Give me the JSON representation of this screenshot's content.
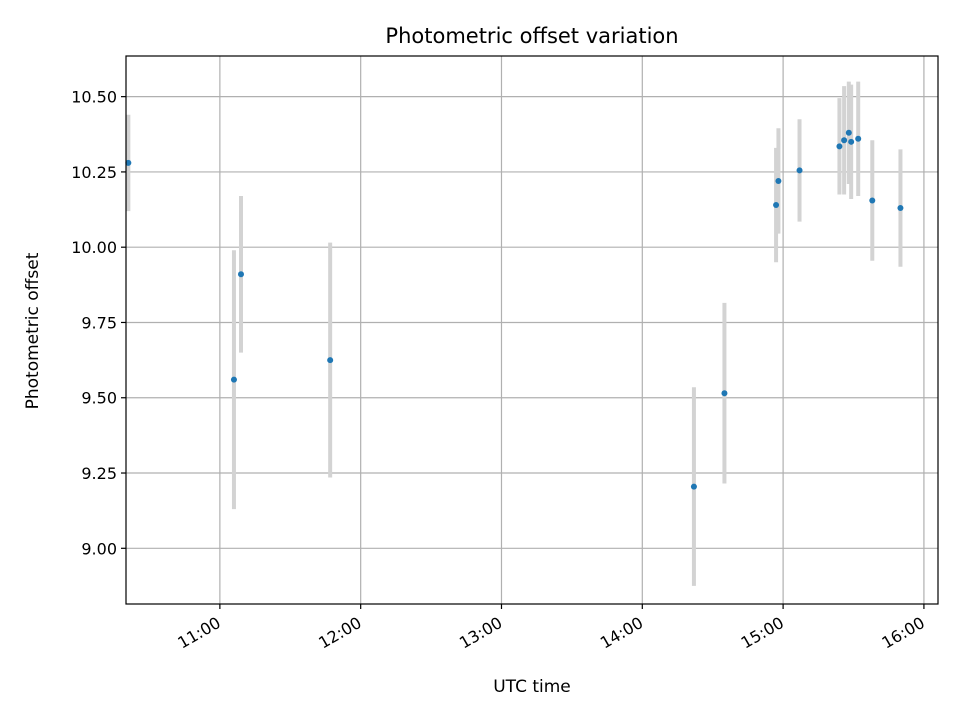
{
  "chart_data": {
    "type": "scatter",
    "title": "Photometric offset variation",
    "xlabel": "UTC time",
    "ylabel": "Photometric offset",
    "xlim": [
      "10:20",
      "16:06"
    ],
    "ylim": [
      8.815,
      10.635
    ],
    "x_ticks": [
      "11:00",
      "12:00",
      "13:00",
      "14:00",
      "15:00",
      "16:00"
    ],
    "y_ticks": [
      "9.00",
      "9.25",
      "9.50",
      "9.75",
      "10.00",
      "10.25",
      "10.50"
    ],
    "grid": true,
    "colors": {
      "point": "#1f77b4",
      "errorbar": "#d3d3d3",
      "grid": "#b0b0b0"
    },
    "points": [
      {
        "x": "10:21",
        "y": 10.28,
        "err": 0.16
      },
      {
        "x": "11:06",
        "y": 9.56,
        "err": 0.43
      },
      {
        "x": "11:09",
        "y": 9.91,
        "err": 0.26
      },
      {
        "x": "11:47",
        "y": 9.625,
        "err": 0.39
      },
      {
        "x": "14:22",
        "y": 9.205,
        "err": 0.33
      },
      {
        "x": "14:35",
        "y": 9.515,
        "err": 0.3
      },
      {
        "x": "14:57",
        "y": 10.14,
        "err": 0.19
      },
      {
        "x": "14:58",
        "y": 10.22,
        "err": 0.175
      },
      {
        "x": "15:07",
        "y": 10.255,
        "err": 0.17
      },
      {
        "x": "15:24",
        "y": 10.335,
        "err": 0.16
      },
      {
        "x": "15:26",
        "y": 10.355,
        "err": 0.18
      },
      {
        "x": "15:28",
        "y": 10.38,
        "err": 0.17
      },
      {
        "x": "15:29",
        "y": 10.35,
        "err": 0.19
      },
      {
        "x": "15:32",
        "y": 10.36,
        "err": 0.19
      },
      {
        "x": "15:38",
        "y": 10.155,
        "err": 0.2
      },
      {
        "x": "15:50",
        "y": 10.13,
        "err": 0.195
      }
    ]
  }
}
